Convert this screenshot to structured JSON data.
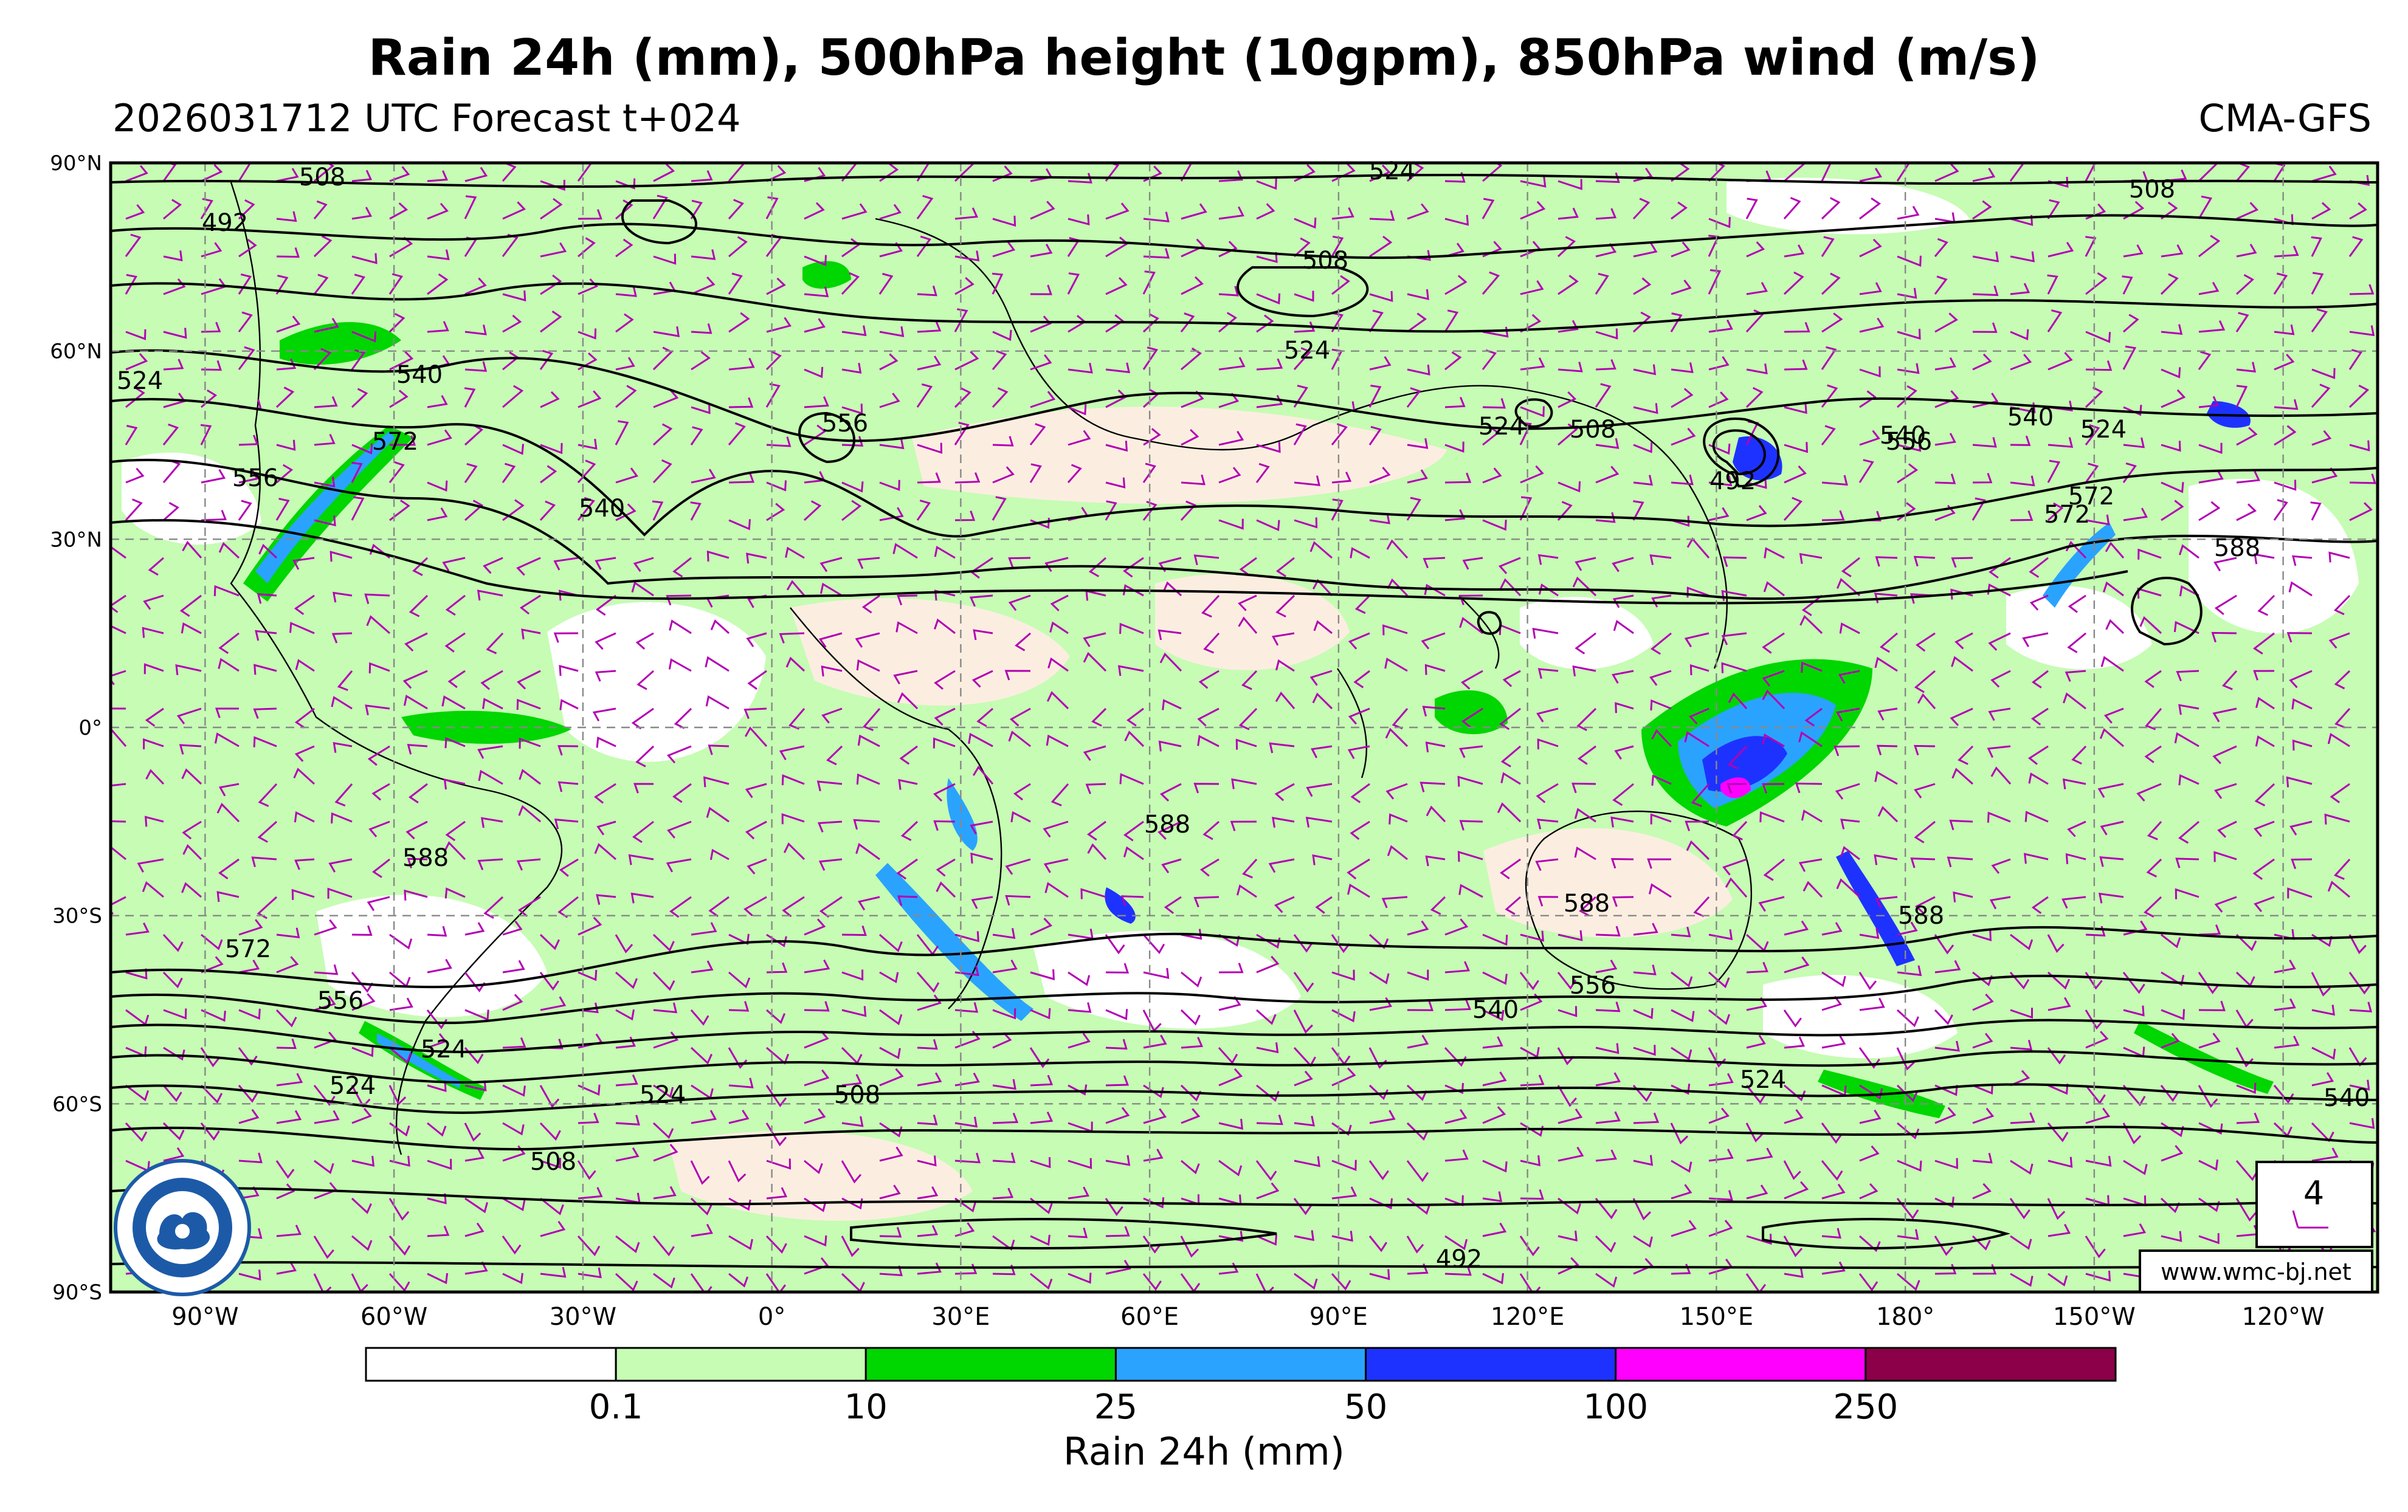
{
  "title": "Rain 24h (mm), 500hPa height (10gpm), 850hPa wind (m/s)",
  "subtitle_left": "2026031712 UTC Forecast t+024",
  "subtitle_right": "CMA-GFS",
  "map": {
    "lat_labels": [
      "90°N",
      "60°N",
      "30°N",
      "0°",
      "30°S",
      "60°S",
      "90°S"
    ],
    "lon_labels": [
      "90°W",
      "60°W",
      "30°W",
      "0°",
      "30°E",
      "60°E",
      "90°E",
      "120°E",
      "150°E",
      "180°",
      "150°W",
      "120°W"
    ],
    "contour_labels": [
      "508",
      "524",
      "508",
      "492",
      "508",
      "524",
      "508",
      "492",
      "524",
      "540",
      "572",
      "556",
      "540",
      "556",
      "524",
      "524",
      "540",
      "556",
      "540",
      "572",
      "588",
      "588",
      "588",
      "588",
      "588",
      "572",
      "556",
      "540",
      "524",
      "524",
      "508",
      "508",
      "492",
      "524",
      "556",
      "572",
      "524",
      "540"
    ],
    "wind_legend_value": "4",
    "website": "www.wmc-bj.net",
    "colors": {
      "rain_light": "#c6fcb4",
      "rain_green": "#00d600",
      "rain_lightblue": "#2aa3ff",
      "rain_blue": "#1e32ff",
      "rain_magenta": "#ff00ff",
      "rain_maroon": "#8b0048",
      "land_tint": "#fbeee0",
      "wind_barb": "#b300b3",
      "contour": "#000000"
    }
  },
  "colorbar": {
    "title": "Rain 24h (mm)",
    "ticks": [
      "0.1",
      "10",
      "25",
      "50",
      "100",
      "250"
    ],
    "colors": [
      "#ffffff",
      "#c6fcb4",
      "#00d600",
      "#2aa3ff",
      "#1e32ff",
      "#ff00ff",
      "#8b0048"
    ]
  }
}
